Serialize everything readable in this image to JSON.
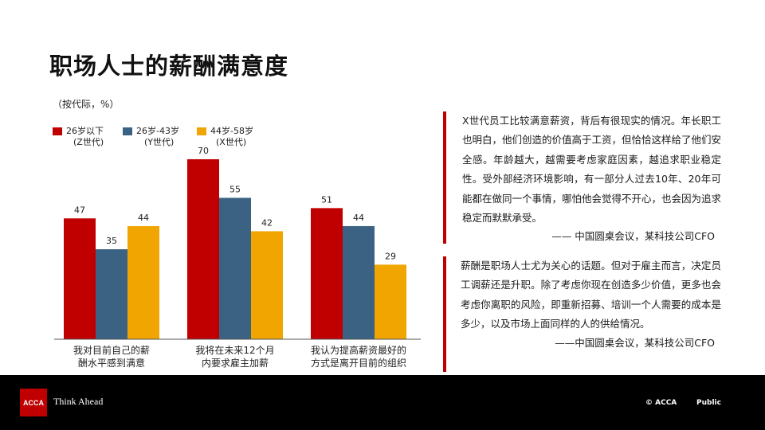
{
  "slide": {
    "title": "职场人士的薪酬满意度",
    "unit_note": "（按代际，%）"
  },
  "colors": {
    "z_gen": "#c00000",
    "y_gen": "#3b6283",
    "x_gen": "#f0a500",
    "quote_bar": "#c00000",
    "footer_bg": "#000000"
  },
  "chart_data": {
    "type": "bar",
    "categories": [
      "我对目前自己的薪\n酬水平感到满意",
      "我将在未来12个月\n内要求雇主加薪",
      "我认为提高薪资最好的\n方式是离开目前的组织"
    ],
    "series": [
      {
        "name": "26岁以下",
        "subname": "(Z世代)",
        "values": [
          47,
          70,
          51
        ]
      },
      {
        "name": "26岁-43岁",
        "subname": "(Y世代)",
        "values": [
          35,
          55,
          44
        ]
      },
      {
        "name": "44岁-58岁",
        "subname": "(X世代)",
        "values": [
          44,
          42,
          29
        ]
      }
    ],
    "ylim": [
      0,
      70
    ],
    "legend_position": "top-left",
    "data_labels": true,
    "grid": false
  },
  "quotes": [
    {
      "text": "X世代员工比较满意薪资，背后有很现实的情况。年长职工也明白，他们创造的价值高于工资，但恰恰这样给了他们安全感。年龄越大，越需要考虑家庭因素，越追求职业稳定性。受外部经济环境影响，有一部分人过去10年、20年可能都在做同一个事情，哪怕他会觉得不开心，也会因为追求稳定而默默承受。",
      "source": "—— 中国圆桌会议，某科技公司CFO"
    },
    {
      "text": "薪酬是职场人士尤为关心的话题。但对于雇主而言，决定员工调薪还是升职。除了考虑你现在创造多少价值，更多也会考虑你离职的风险，即重新招募、培训一个人需要的成本是多少，以及市场上面同样的人的供给情况。",
      "source": "——中国圆桌会议，某科技公司CFO"
    }
  ],
  "footer": {
    "logo_text": "ACCA",
    "tagline": "Think Ahead",
    "copyright": "© ACCA",
    "classification": "Public"
  }
}
